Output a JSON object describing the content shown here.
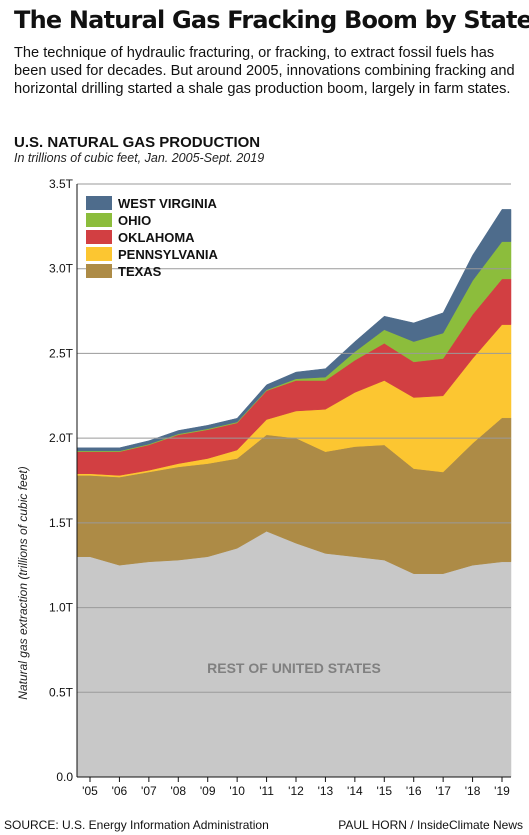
{
  "title": "The Natural Gas Fracking Boom by State",
  "intro": "The technique of hydraulic fracturing, or fracking, to extract fossil fuels has been used for decades. But around 2005, innovations combining fracking and horizontal drilling started a shale gas production boom, largely in farm states.",
  "chart_heading": "U.S. NATURAL GAS PRODUCTION",
  "chart_subtitle": "In trillions of cubic feet, Jan. 2005-Sept. 2019",
  "source": "SOURCE: U.S. Energy Information Administration",
  "credit": "PAUL HORN / InsideClimate News",
  "chart_data": {
    "type": "area",
    "stacked": true,
    "x": [
      "2005",
      "2006",
      "2007",
      "2008",
      "2009",
      "2010",
      "2011",
      "2012",
      "2013",
      "2014",
      "2015",
      "2016",
      "2017",
      "2018",
      "2019"
    ],
    "x_tick_labels": [
      "'05",
      "'06",
      "'07",
      "'08",
      "'09",
      "'10",
      "'11",
      "'12",
      "'13",
      "'14",
      "'15",
      "'16",
      "'17",
      "'18",
      "'19"
    ],
    "ylabel": "Natural gas extraction (trillions of cubic feet)",
    "y_ticks": [
      0,
      0.5,
      1.0,
      1.5,
      2.0,
      2.5,
      3.0,
      3.5
    ],
    "y_tick_labels": [
      "0.0",
      "0.5T",
      "1.0T",
      "1.5T",
      "2.0T",
      "2.5T",
      "3.0T",
      "3.5T"
    ],
    "ylim": [
      0,
      3.5
    ],
    "grid": true,
    "legend_position": "top-left",
    "area_label": "REST OF UNITED STATES",
    "series": [
      {
        "key": "rest",
        "color": "#c8c8c8",
        "values": [
          1.3,
          1.25,
          1.27,
          1.28,
          1.3,
          1.35,
          1.45,
          1.38,
          1.32,
          1.3,
          1.28,
          1.2,
          1.2,
          1.25,
          1.27
        ]
      },
      {
        "key": "texas",
        "name": "TEXAS",
        "color": "#ad8b46",
        "values": [
          0.48,
          0.52,
          0.53,
          0.55,
          0.55,
          0.53,
          0.57,
          0.62,
          0.6,
          0.65,
          0.68,
          0.62,
          0.6,
          0.72,
          0.85
        ]
      },
      {
        "key": "pennsylvania",
        "name": "PENNSYLVANIA",
        "color": "#fcc631",
        "values": [
          0.01,
          0.01,
          0.01,
          0.02,
          0.03,
          0.05,
          0.09,
          0.16,
          0.25,
          0.32,
          0.38,
          0.42,
          0.45,
          0.5,
          0.55
        ]
      },
      {
        "key": "oklahoma",
        "name": "OKLAHOMA",
        "color": "#d23f42",
        "values": [
          0.13,
          0.14,
          0.15,
          0.17,
          0.17,
          0.16,
          0.17,
          0.18,
          0.17,
          0.19,
          0.22,
          0.21,
          0.22,
          0.26,
          0.27
        ]
      },
      {
        "key": "ohio",
        "name": "OHIO",
        "color": "#8cbd3c",
        "values": [
          0.005,
          0.005,
          0.005,
          0.005,
          0.005,
          0.005,
          0.005,
          0.01,
          0.02,
          0.05,
          0.08,
          0.12,
          0.15,
          0.2,
          0.22
        ]
      },
      {
        "key": "west_virginia",
        "name": "WEST VIRGINIA",
        "color": "#4e6c8c",
        "values": [
          0.018,
          0.018,
          0.02,
          0.02,
          0.021,
          0.022,
          0.03,
          0.04,
          0.05,
          0.06,
          0.08,
          0.11,
          0.12,
          0.15,
          0.19
        ]
      }
    ],
    "legend_order": [
      "west_virginia",
      "ohio",
      "oklahoma",
      "pennsylvania",
      "texas"
    ]
  }
}
